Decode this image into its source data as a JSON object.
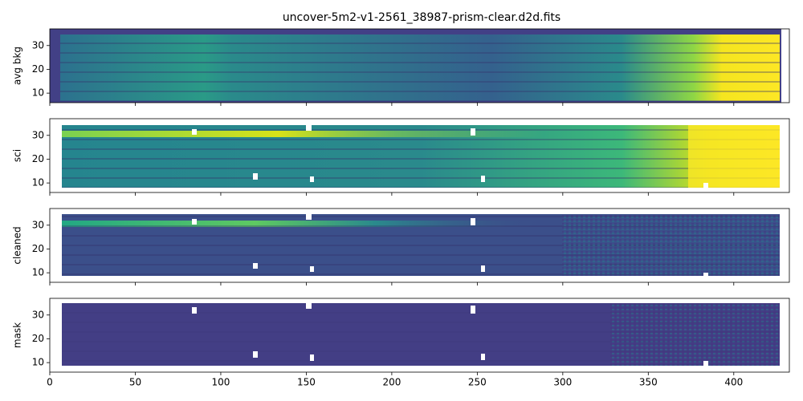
{
  "chart_data": [
    {
      "type": "image",
      "title": "uncover-5m2-v1-2561_38987-prism-clear.d2d.fits",
      "ylabel": "avg bkg",
      "xlim": [
        0,
        432.5
      ],
      "ylim": [
        6,
        37
      ],
      "yticks": [
        10,
        20,
        30
      ]
    },
    {
      "type": "image",
      "ylabel": "sci",
      "xlim": [
        0,
        432.5
      ],
      "ylim": [
        6,
        37
      ],
      "yticks": [
        10,
        20,
        30
      ]
    },
    {
      "type": "image",
      "ylabel": "cleaned",
      "xlim": [
        0,
        432.5
      ],
      "ylim": [
        6,
        37
      ],
      "yticks": [
        10,
        20,
        30
      ]
    },
    {
      "type": "image",
      "ylabel": "mask",
      "xlim": [
        0,
        432.5
      ],
      "ylim": [
        6,
        37
      ],
      "yticks": [
        10,
        20,
        30
      ],
      "xticks": [
        0,
        50,
        100,
        150,
        200,
        250,
        300,
        350,
        400
      ]
    }
  ]
}
